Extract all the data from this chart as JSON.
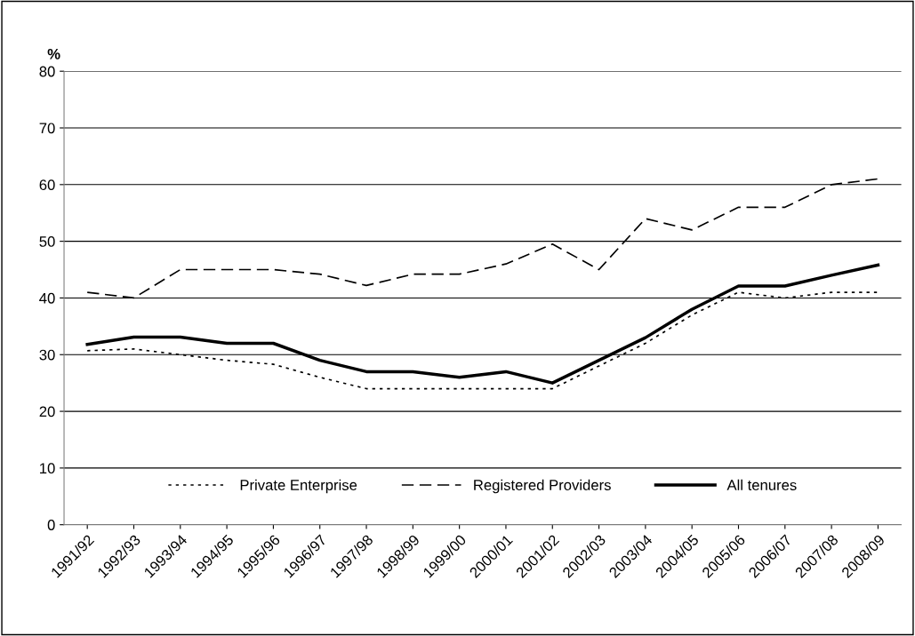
{
  "chart_data": {
    "type": "line",
    "ylabel": "%",
    "categories": [
      "1991/92",
      "1992/93",
      "1993/94",
      "1994/95",
      "1995/96",
      "1996/97",
      "1997/98",
      "1998/99",
      "1999/00",
      "2000/01",
      "2001/02",
      "2002/03",
      "2003/04",
      "2004/05",
      "2005/06",
      "2006/07",
      "2007/08",
      "2008/09"
    ],
    "series": [
      {
        "name": "Private Enterprise",
        "color": "#000000",
        "line_style": "dotted",
        "values": [
          30.7,
          31,
          30,
          29,
          28.3,
          26,
          24,
          24,
          24,
          24,
          24,
          28,
          32,
          37,
          41,
          40,
          41,
          41
        ]
      },
      {
        "name": "Registered Providers",
        "color": "#000000",
        "line_style": "dashed",
        "values": [
          41,
          40,
          45,
          45,
          45,
          44.2,
          42.2,
          44.2,
          44.2,
          46,
          49.5,
          45,
          54,
          52,
          56,
          56,
          60,
          61
        ]
      },
      {
        "name": "All tenures",
        "color": "#000000",
        "line_style": "solid",
        "values": [
          31.8,
          33.1,
          33.1,
          32,
          32,
          29,
          27,
          27,
          26,
          27,
          25,
          29,
          33,
          38,
          42.1,
          42.1,
          44,
          45.8
        ]
      }
    ],
    "ylim": [
      0,
      80
    ],
    "yticks": [
      0,
      10,
      20,
      30,
      40,
      50,
      60,
      70,
      80
    ],
    "grid": "y",
    "legend": "bottom",
    "marker": "none"
  }
}
